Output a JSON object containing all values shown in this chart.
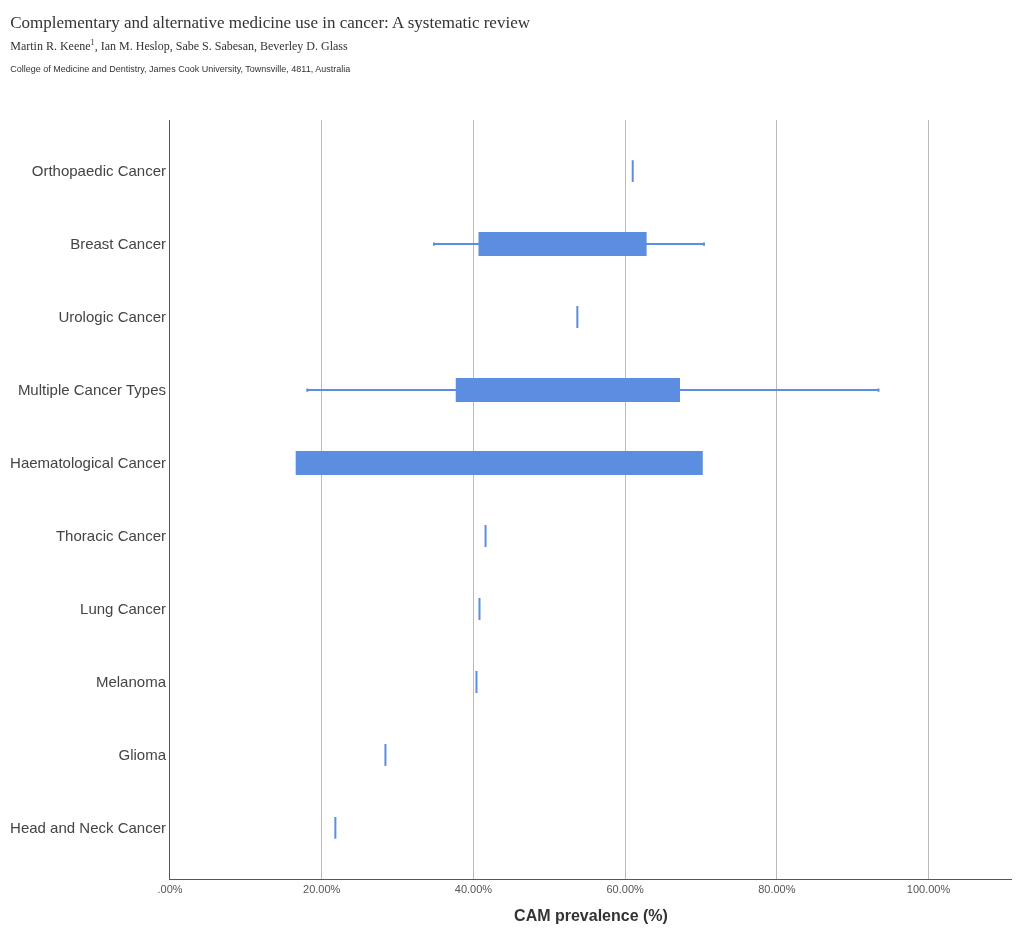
{
  "chart_data": {
    "type": "box",
    "title": "Complementary and alternative medicine use in cancer: A systematic review",
    "subtitle": "Martin R. Keene$^{1}$, Ian M. Heslop, Sabe S. Sabesan, Beverley D. Glass",
    "annotations": [
      "College of Medicine and Dentistry, James Cook University, Townsville, 4811, Australia"
    ],
    "orientation": "horizontal",
    "xlabel": "CAM prevalence (%)",
    "categories": [
      "Orthopaedic Cancer",
      "Breast Cancer",
      "Urologic Cancer",
      "Multiple Cancer Types",
      "Haematological Cancer",
      "Thoracic Cancer",
      "Lung Cancer",
      "Melanoma",
      "Glioma",
      "Head and Neck Cancer"
    ],
    "series": [
      {
        "color": "#5b8ee0",
        "boxes": [
          {
            "low": 61.0,
            "q1": 61.0,
            "median": 61.0,
            "q3": 61.0,
            "high": 61.0
          },
          {
            "low": 34.8,
            "q1": 40.8,
            "median": 57.0,
            "q3": 62.7,
            "high": 70.4
          },
          {
            "low": 53.7,
            "q1": 53.7,
            "median": 53.7,
            "q3": 53.7,
            "high": 53.7
          },
          {
            "low": 18.1,
            "q1": 37.8,
            "median": 51.4,
            "q3": 67.1,
            "high": 93.4
          },
          {
            "low": 16.7,
            "q1": 16.7,
            "median": 43.4,
            "q3": 70.1,
            "high": 70.1
          },
          {
            "low": 41.6,
            "q1": 41.6,
            "median": 41.6,
            "q3": 41.6,
            "high": 41.6
          },
          {
            "low": 40.8,
            "q1": 40.8,
            "median": 40.8,
            "q3": 40.8,
            "high": 40.8
          },
          {
            "low": 40.4,
            "q1": 40.4,
            "median": 40.4,
            "q3": 40.4,
            "high": 40.4
          },
          {
            "low": 28.4,
            "q1": 28.4,
            "median": 28.4,
            "q3": 28.4,
            "high": 28.4
          },
          {
            "low": 21.8,
            "q1": 21.8,
            "median": 21.8,
            "q3": 21.8,
            "high": 21.8
          }
        ]
      }
    ],
    "xlim": [
      0,
      111
    ],
    "xticks": [
      {
        "value": 0,
        "label": ".00%"
      },
      {
        "value": 20,
        "label": "20.00%"
      },
      {
        "value": 40,
        "label": "40.00%"
      },
      {
        "value": 60,
        "label": "60.00%"
      },
      {
        "value": 80,
        "label": "80.00%"
      },
      {
        "value": 100,
        "label": "100.00%"
      }
    ],
    "grid": "x"
  }
}
